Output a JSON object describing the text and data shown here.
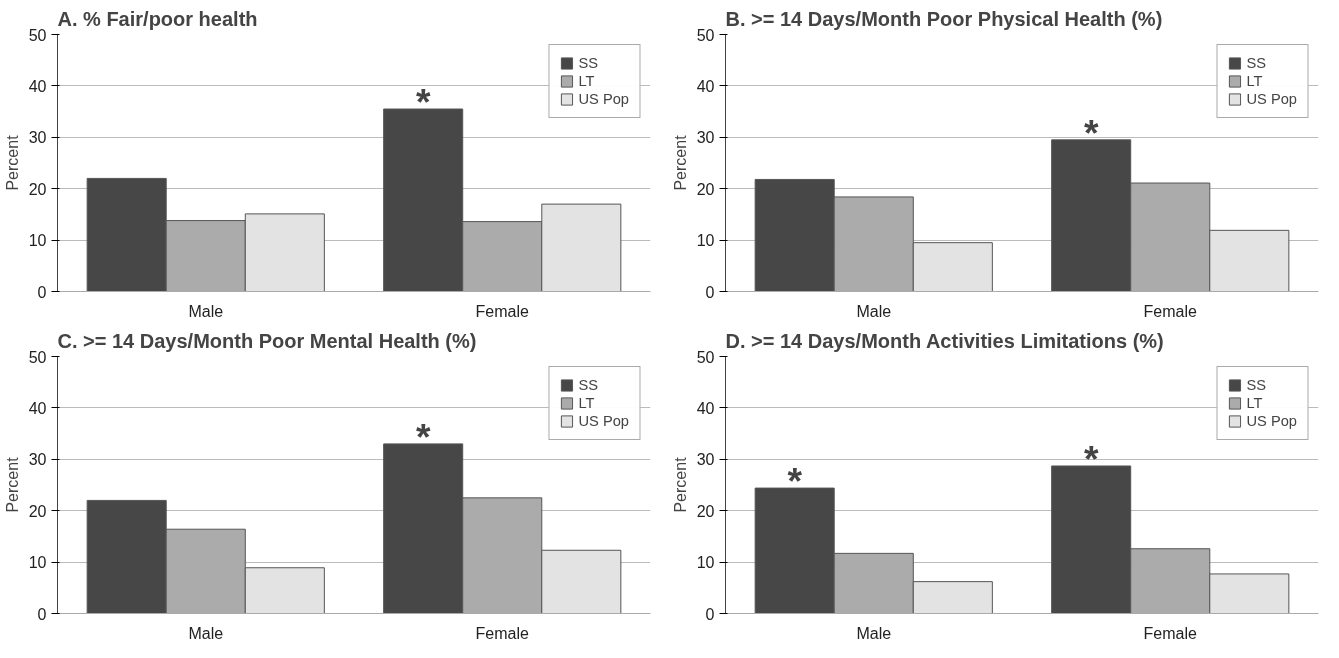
{
  "chart_data": [
    {
      "type": "bar",
      "title": "A.  % Fair/poor health",
      "ylabel": "Percent",
      "categories": [
        "Male",
        "Female"
      ],
      "ylim": [
        0,
        50
      ],
      "yticks": [
        0,
        10,
        20,
        30,
        40,
        50
      ],
      "grid": "y",
      "legend": "top right",
      "series": [
        {
          "name": "SS",
          "color": "#474747",
          "values": [
            22,
            35.5
          ]
        },
        {
          "name": "LT",
          "color": "#ababab",
          "values": [
            13.8,
            13.6
          ]
        },
        {
          "name": "US Pop",
          "color": "#e3e3e3",
          "values": [
            15.1,
            17
          ]
        }
      ],
      "annotations": [
        "*"
      ]
    },
    {
      "type": "bar",
      "title": "B.  >= 14 Days/Month Poor Physical Health (%)",
      "ylabel": "Percent",
      "categories": [
        "Male",
        "Female"
      ],
      "ylim": [
        0,
        50
      ],
      "yticks": [
        0,
        10,
        20,
        30,
        40,
        50
      ],
      "grid": "y",
      "legend": "top right",
      "series": [
        {
          "name": "SS",
          "color": "#474747",
          "values": [
            21.8,
            29.5
          ]
        },
        {
          "name": "LT",
          "color": "#ababab",
          "values": [
            18.4,
            21.1
          ]
        },
        {
          "name": "US Pop",
          "color": "#e3e3e3",
          "values": [
            9.5,
            11.9
          ]
        }
      ],
      "annotations": [
        "*"
      ]
    },
    {
      "type": "bar",
      "title": "C.  >= 14 Days/Month Poor  Mental Health (%)",
      "ylabel": "Percent",
      "categories": [
        "Male",
        "Female"
      ],
      "ylim": [
        0,
        50
      ],
      "yticks": [
        0,
        10,
        20,
        30,
        40,
        50
      ],
      "grid": "y",
      "legend": "top right",
      "series": [
        {
          "name": "SS",
          "color": "#474747",
          "values": [
            22,
            33
          ]
        },
        {
          "name": "LT",
          "color": "#ababab",
          "values": [
            16.4,
            22.5
          ]
        },
        {
          "name": "US Pop",
          "color": "#e3e3e3",
          "values": [
            8.9,
            12.3
          ]
        }
      ],
      "annotations": [
        "*"
      ]
    },
    {
      "type": "bar",
      "title": "D.  >= 14 Days/Month Activities Limitations (%)",
      "ylabel": "Percent",
      "categories": [
        "Male",
        "Female"
      ],
      "ylim": [
        0,
        50
      ],
      "yticks": [
        0,
        10,
        20,
        30,
        40,
        50
      ],
      "grid": "y",
      "legend": "top right",
      "series": [
        {
          "name": "SS",
          "color": "#474747",
          "values": [
            24.4,
            28.7
          ]
        },
        {
          "name": "LT",
          "color": "#ababab",
          "values": [
            11.7,
            12.6
          ]
        },
        {
          "name": "US Pop",
          "color": "#e3e3e3",
          "values": [
            6.2,
            7.7
          ]
        }
      ],
      "annotations": [
        "*",
        "*"
      ]
    }
  ]
}
